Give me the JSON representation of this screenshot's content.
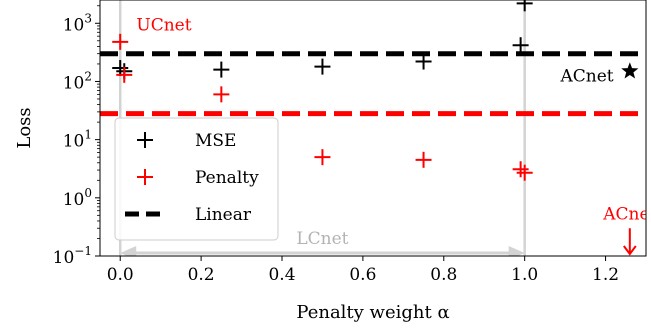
{
  "chart_data": {
    "type": "scatter",
    "xlabel": "Penalty weight α",
    "ylabel": "Loss",
    "xlim": [
      -0.05,
      1.3
    ],
    "ylim_log10": [
      -1,
      3.4
    ],
    "y_scale": "log",
    "grid": false,
    "legend_placement": "lower-left",
    "x_ticks": [
      0.0,
      0.2,
      0.4,
      0.6,
      0.8,
      1.0,
      1.2
    ],
    "x_tick_labels": [
      "0.0",
      "0.2",
      "0.4",
      "0.6",
      "0.8",
      "1.0",
      "1.2"
    ],
    "y_ticks": [
      {
        "base": "10",
        "exp": "−1",
        "value": 0.1
      },
      {
        "base": "10",
        "exp": "0",
        "value": 1
      },
      {
        "base": "10",
        "exp": "1",
        "value": 10
      },
      {
        "base": "10",
        "exp": "2",
        "value": 100
      },
      {
        "base": "10",
        "exp": "3",
        "value": 1000
      }
    ],
    "series": [
      {
        "name": "MSE",
        "marker": "plus",
        "color": "#000000",
        "points": [
          [
            0.0,
            170
          ],
          [
            0.01,
            150
          ],
          [
            0.25,
            160
          ],
          [
            0.5,
            180
          ],
          [
            0.75,
            220
          ],
          [
            0.99,
            420
          ],
          [
            1.0,
            2200
          ]
        ]
      },
      {
        "name": "Penalty",
        "marker": "plus",
        "color": "#ff0000",
        "points": [
          [
            0.0,
            480
          ],
          [
            0.01,
            130
          ],
          [
            0.25,
            60
          ],
          [
            0.5,
            5
          ],
          [
            0.75,
            4.5
          ],
          [
            0.99,
            3.1
          ],
          [
            1.0,
            2.7
          ]
        ]
      }
    ],
    "reference_lines": [
      {
        "name": "Linear",
        "value": 300,
        "color": "#000000",
        "style": "dashed",
        "in_legend": true
      },
      {
        "name": "",
        "value": 28,
        "color": "#ff0000",
        "style": "dashed",
        "in_legend": false
      }
    ],
    "vertical_lines": [
      {
        "x": 0.0,
        "color": "#d3d3d3"
      },
      {
        "x": 1.0,
        "color": "#d3d3d3"
      }
    ],
    "special_points": [
      {
        "x": 1.26,
        "y": 150,
        "marker": "star",
        "color": "#000000"
      }
    ],
    "annotations": [
      {
        "text": "UCnet",
        "color": "#ff0000",
        "x": 0.04,
        "y": 750,
        "anchor": "start"
      },
      {
        "text": "ACnet",
        "color": "#000000",
        "x": 1.22,
        "y": 100,
        "anchor": "end"
      },
      {
        "text": "ACnet",
        "color": "#ff0000",
        "x": 1.26,
        "y": 0.42,
        "anchor": "middle"
      },
      {
        "text": "LCnet",
        "color": "#b3b3b3",
        "x": 0.5,
        "y": 0.16,
        "anchor": "middle"
      }
    ],
    "offscale_arrow": {
      "x": 1.26,
      "y_from": 0.3,
      "y_to": 0.1,
      "color": "#ff0000"
    },
    "range_arrow": {
      "x_from": 0.0,
      "x_to": 1.0,
      "y": 0.1,
      "color": "#d3d3d3"
    },
    "legend": [
      {
        "label": "MSE",
        "marker": "plus",
        "color": "#000000"
      },
      {
        "label": "Penalty",
        "marker": "plus",
        "color": "#ff0000"
      },
      {
        "label": "Linear",
        "marker": "dash",
        "color": "#000000"
      }
    ]
  }
}
